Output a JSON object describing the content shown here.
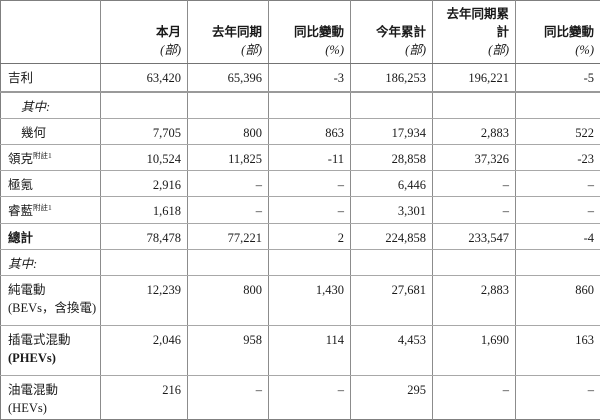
{
  "page": {
    "type": "sales-volume-announcement-table",
    "background_color": "#ffffff",
    "text_color": "#1a1a1a",
    "border_color": "#7f7f7f"
  },
  "table": {
    "columns": [
      {
        "label": "",
        "unit": ""
      },
      {
        "label": "本月",
        "unit": "(部)"
      },
      {
        "label": "去年同期",
        "unit": "(部)"
      },
      {
        "label": "同比變動",
        "unit": "(%)"
      },
      {
        "label": "今年累計",
        "unit": "(部)"
      },
      {
        "label": "去年同期累計",
        "unit": "(部)"
      },
      {
        "label": "同比變動",
        "unit": "(%)"
      }
    ],
    "rows": [
      {
        "label": "吉利",
        "sup": "",
        "sublabel": "",
        "style": "",
        "indent": false,
        "thick_bottom": true,
        "first": true,
        "values": [
          "63,420",
          "65,396",
          "-3",
          "186,253",
          "196,221",
          "-5"
        ]
      },
      {
        "label": "其中:",
        "sup": "",
        "sublabel": "",
        "style": "italic",
        "indent": true,
        "thick_bottom": false,
        "first": false,
        "values": [
          "",
          "",
          "",
          "",
          "",
          ""
        ]
      },
      {
        "label": "幾何",
        "sup": "",
        "sublabel": "",
        "style": "",
        "indent": true,
        "thick_bottom": false,
        "first": false,
        "values": [
          "7,705",
          "800",
          "863",
          "17,934",
          "2,883",
          "522"
        ]
      },
      {
        "label": "領克",
        "sup": "附註1",
        "sublabel": "",
        "style": "",
        "indent": false,
        "thick_bottom": false,
        "first": false,
        "values": [
          "10,524",
          "11,825",
          "-11",
          "28,858",
          "37,326",
          "-23"
        ]
      },
      {
        "label": "極氪",
        "sup": "",
        "sublabel": "",
        "style": "",
        "indent": false,
        "thick_bottom": false,
        "first": false,
        "values": [
          "2,916",
          "–",
          "–",
          "6,446",
          "–",
          "–"
        ]
      },
      {
        "label": "睿藍",
        "sup": "附註1",
        "sublabel": "",
        "style": "",
        "indent": false,
        "thick_bottom": false,
        "first": false,
        "values": [
          "1,618",
          "–",
          "–",
          "3,301",
          "–",
          "–"
        ]
      },
      {
        "label": "總計",
        "sup": "",
        "sublabel": "",
        "style": "bold",
        "indent": false,
        "thick_bottom": false,
        "first": false,
        "values": [
          "78,478",
          "77,221",
          "2",
          "224,858",
          "233,547",
          "-4"
        ]
      },
      {
        "label": "其中:",
        "sup": "",
        "sublabel": "",
        "style": "italic",
        "indent": false,
        "thick_bottom": false,
        "first": false,
        "values": [
          "",
          "",
          "",
          "",
          "",
          ""
        ]
      },
      {
        "label": "純電動",
        "sup": "",
        "sublabel": "(BEVs，含換電)",
        "sublabel_bold": false,
        "style": "",
        "indent": false,
        "thick_bottom": false,
        "first": false,
        "values": [
          "12,239",
          "800",
          "1,430",
          "27,681",
          "2,883",
          "860"
        ]
      },
      {
        "label": "插電式混動",
        "sup": "",
        "sublabel": "(PHEVs)",
        "sublabel_bold": true,
        "style": "",
        "indent": false,
        "thick_bottom": false,
        "first": false,
        "values": [
          "2,046",
          "958",
          "114",
          "4,453",
          "1,690",
          "163"
        ]
      },
      {
        "label": "油電混動",
        "sup": "",
        "sublabel": "(HEVs)",
        "sublabel_bold": false,
        "style": "",
        "indent": false,
        "thick_bottom": false,
        "first": false,
        "values": [
          "216",
          "–",
          "–",
          "295",
          "–",
          "–"
        ]
      }
    ]
  }
}
